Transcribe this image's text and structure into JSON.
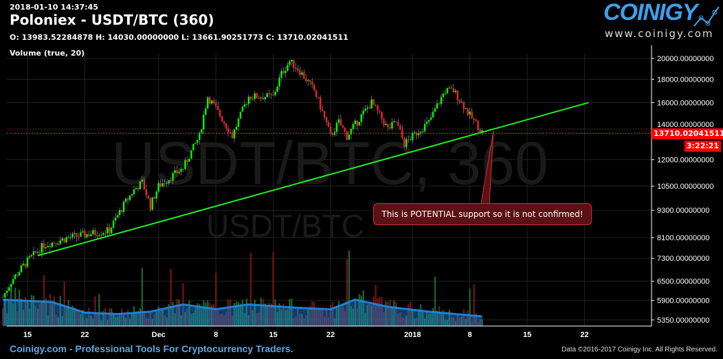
{
  "header": {
    "timestamp": "2018-01-10 14:37:45",
    "title": "Poloniex - USDT/BTC (360)",
    "ohlc": "O: 13983.52284878 H: 14030.00000000 L: 13661.90251773 C: 13710.02041511",
    "volume_label": "Volume (true, 20)"
  },
  "logo": {
    "name": "COINIGY",
    "url": "www.coinigy.com"
  },
  "watermark": {
    "big": "USDT/BTC, 360",
    "small": "USDT/BTC"
  },
  "price_label": "13710.02041511",
  "countdown": "3:22:21",
  "annotation": "This is POTENTIAL support so it is not confirmed!",
  "footer": {
    "left": "Coinigy.com - Professional Tools For Cryptocurrency Traders.",
    "right": "Data ©2016-2017 Coinigy Inc. All Rights Reserved."
  },
  "colors": {
    "up": "#00ff00",
    "down": "#ff2020",
    "trend": "#22ee22",
    "volma": "#1e88e5"
  },
  "chart_data": {
    "type": "candlestick",
    "interval_hours": 6,
    "yscale": "log",
    "ylim": [
      5200,
      20600
    ],
    "yticks": [
      "20000.00000000",
      "18000.00000000",
      "16000.00000000",
      "14000.00000000",
      "12000.00000000",
      "10500.00000000",
      "9300.00000000",
      "8100.00000000",
      "7300.00000000",
      "6500.00000000",
      "5900.00000000",
      "5350.00000000"
    ],
    "xticks": [
      {
        "day": 3,
        "label": "15"
      },
      {
        "day": 10,
        "label": "22"
      },
      {
        "day": 19,
        "label": "Dec"
      },
      {
        "day": 26,
        "label": "8"
      },
      {
        "day": 33,
        "label": "15"
      },
      {
        "day": 40,
        "label": "22"
      },
      {
        "day": 50,
        "label": "2018"
      },
      {
        "day": 57,
        "label": "8"
      },
      {
        "day": 64,
        "label": "15"
      },
      {
        "day": 71,
        "label": "22"
      }
    ],
    "xnote": "day 0 = Nov 12 2017",
    "close_path": [
      [
        0,
        6000
      ],
      [
        1,
        6500
      ],
      [
        3,
        7200
      ],
      [
        5,
        7800
      ],
      [
        8,
        8100
      ],
      [
        13,
        8400
      ],
      [
        15,
        9700
      ],
      [
        16,
        10300
      ],
      [
        17,
        10700
      ],
      [
        18,
        9500
      ],
      [
        19,
        10500
      ],
      [
        22,
        11500
      ],
      [
        24,
        13500
      ],
      [
        25,
        16500
      ],
      [
        26,
        15500
      ],
      [
        28,
        13500
      ],
      [
        30,
        16500
      ],
      [
        33,
        16500
      ],
      [
        34,
        18500
      ],
      [
        35,
        19700
      ],
      [
        36,
        19000
      ],
      [
        38,
        17000
      ],
      [
        40,
        13500
      ],
      [
        41,
        14500
      ],
      [
        42,
        13500
      ],
      [
        45,
        16000
      ],
      [
        47,
        14000
      ],
      [
        48,
        14500
      ],
      [
        49,
        13000
      ],
      [
        50,
        13500
      ],
      [
        52,
        14500
      ],
      [
        54,
        17000
      ],
      [
        55,
        17000
      ],
      [
        57,
        15000
      ],
      [
        58.6,
        13710
      ]
    ],
    "trendline": [
      [
        4.3,
        7400
      ],
      [
        71.5,
        16000
      ]
    ],
    "volume_ma_path": [
      [
        0,
        0.55
      ],
      [
        6,
        0.5
      ],
      [
        10,
        0.28
      ],
      [
        14,
        0.25
      ],
      [
        18,
        0.3
      ],
      [
        22,
        0.45
      ],
      [
        26,
        0.35
      ],
      [
        30,
        0.45
      ],
      [
        36,
        0.38
      ],
      [
        40,
        0.35
      ],
      [
        43,
        0.55
      ],
      [
        47,
        0.4
      ],
      [
        52,
        0.3
      ],
      [
        58.6,
        0.2
      ]
    ]
  }
}
